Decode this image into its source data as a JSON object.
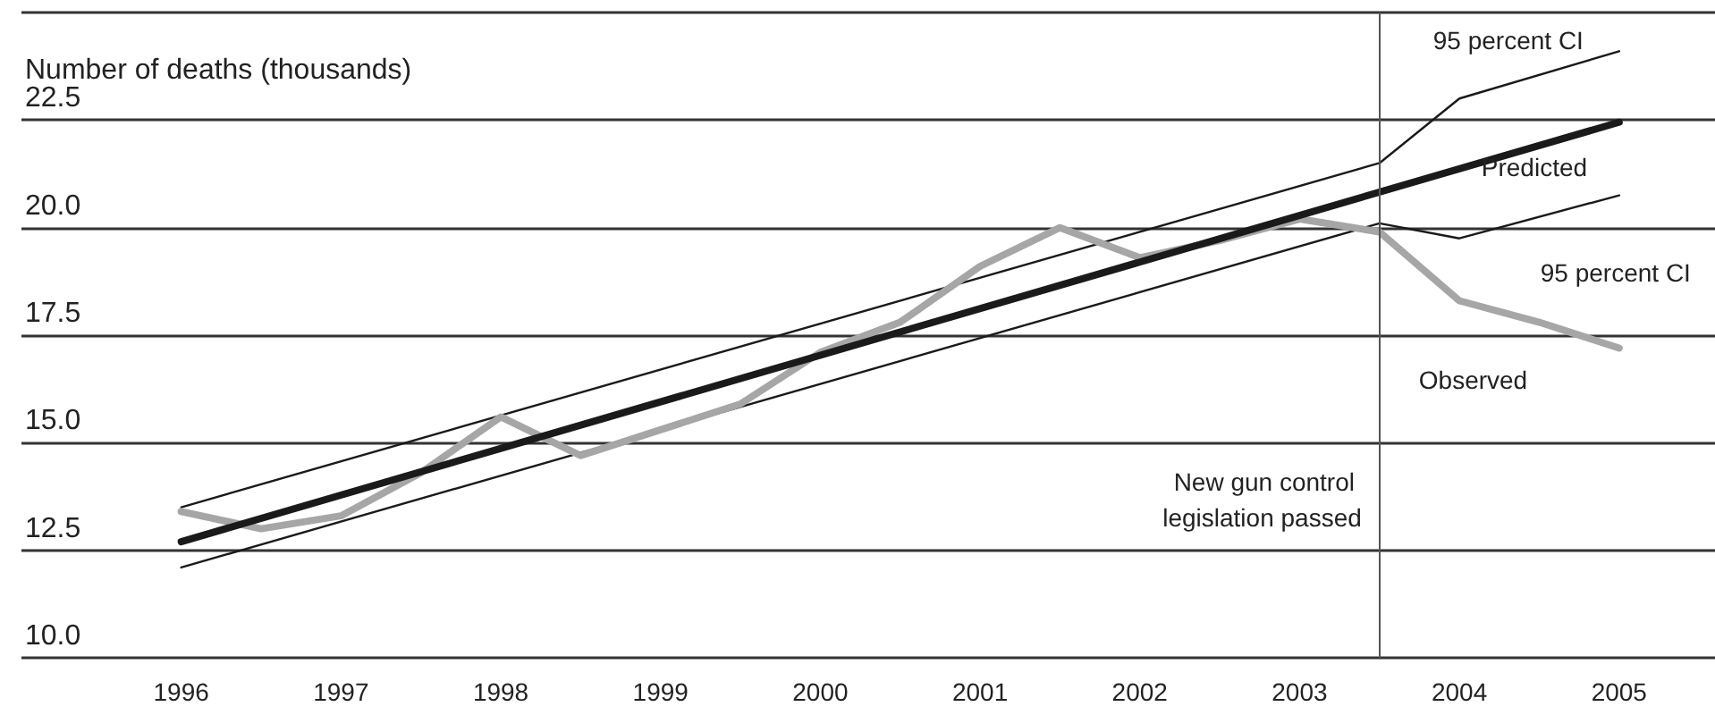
{
  "chart_data": {
    "type": "line",
    "ylabel": "Number of deaths (thousands)",
    "xlim": [
      1995,
      2005.6
    ],
    "xticks": [
      1996,
      1997,
      1998,
      1999,
      2000,
      2001,
      2002,
      2003,
      2004,
      2005
    ],
    "ylim": [
      10,
      25
    ],
    "yticks": [
      {
        "value": 10,
        "label": "10.0"
      },
      {
        "value": 12.5,
        "label": "12.5"
      },
      {
        "value": 15,
        "label": "15.0"
      },
      {
        "value": 17.5,
        "label": "17.5"
      },
      {
        "value": 20,
        "label": "20.0"
      },
      {
        "value": 22.5,
        "label": "22.5"
      },
      {
        "value": 25,
        "label": null
      }
    ],
    "grid": "y",
    "marker": "none",
    "line_style": "solid",
    "series": [
      {
        "name": "95 percent CI",
        "color": "#1a1a1a",
        "x": [
          1996,
          2003.5,
          2004,
          2005
        ],
        "values": [
          13.5,
          21.5,
          23.0,
          24.1
        ]
      },
      {
        "name": "Predicted",
        "color": "#1a1a1a",
        "x": [
          1996,
          2005
        ],
        "values": [
          12.7,
          22.45
        ]
      },
      {
        "name": "95 percent CI",
        "color": "#1a1a1a",
        "x": [
          1996,
          2003.5,
          2004,
          2005
        ],
        "values": [
          12.1,
          20.1,
          19.75,
          20.75
        ]
      },
      {
        "name": "Observed",
        "color": "#a6a6a6",
        "x": [
          1996,
          1996.5,
          1997,
          1997.5,
          1998,
          1998.5,
          1999,
          1999.5,
          2000,
          2000.5,
          2001,
          2001.5,
          2002,
          2002.5,
          2003,
          2003.5,
          2004,
          2004.5,
          2005
        ],
        "values": [
          13.4,
          13.0,
          13.3,
          14.3,
          15.6,
          14.7,
          15.3,
          15.9,
          17.1,
          17.8,
          19.1,
          20.0,
          19.3,
          19.7,
          20.2,
          19.9,
          18.3,
          17.8,
          17.2
        ]
      }
    ],
    "ref_lines": [
      {
        "axis": "x",
        "value": 2003.5,
        "label": "New gun control legislation passed",
        "color": "#555555"
      }
    ]
  }
}
